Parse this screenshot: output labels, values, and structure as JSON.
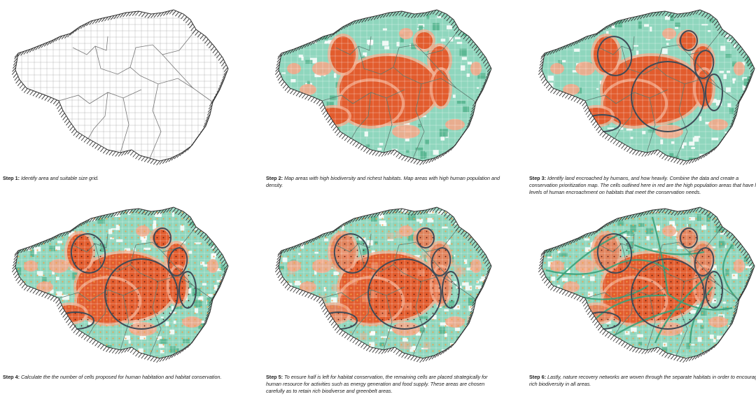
{
  "colors": {
    "habitat": "#8fd6bd",
    "habitat_dark": "#4fb08a",
    "human_high": "#e25c2d",
    "human_low": "#f2a98a",
    "outline": "#3f4b57",
    "hatch": "#333333",
    "grid": "#b9b9b9"
  },
  "steps": [
    {
      "label": "Step 1:",
      "text": "Identify area and suitable size grid.",
      "layers": [
        "grid",
        "boundaries"
      ]
    },
    {
      "label": "Step 2:",
      "text": "Map areas with high biodiversity and richest habitats. Map areas with high human population and density.",
      "layers": [
        "habitat",
        "human",
        "grid",
        "boundaries"
      ]
    },
    {
      "label": "Step 3:",
      "text": "Identify land encroached by humans, and  how heavily. Combine the data and create a conservation prioritization map. The cells outlined here in red are the high population areas that have low levels of human encroachment on habitats that meet the conservation needs.",
      "layers": [
        "habitat",
        "human",
        "grid",
        "boundaries",
        "outlines"
      ]
    },
    {
      "label": "Step 4:",
      "text": "Calculate the the number of cells proposed for human habitation and habitat conservation.",
      "layers": [
        "habitat",
        "human",
        "grid",
        "boundaries",
        "outlines",
        "cell-markers"
      ]
    },
    {
      "label": "Step 5:",
      "text": "To ensure half is left for habitat conservation, the remaining cells are placed strategically for human resource for activities such as energy generation and food supply. These areas are chosen carefully as to retain rich biodiverse and greenbelt areas.",
      "layers": [
        "habitat",
        "human",
        "grid",
        "boundaries",
        "outlines",
        "cell-markers"
      ]
    },
    {
      "label": "Step 6:",
      "text": "Lastly, nature recovery networks are woven through the separate habitats in order to encourage rich biodiversity in all areas.",
      "layers": [
        "habitat",
        "human",
        "grid",
        "boundaries",
        "outlines",
        "cell-markers",
        "networks"
      ]
    }
  ]
}
